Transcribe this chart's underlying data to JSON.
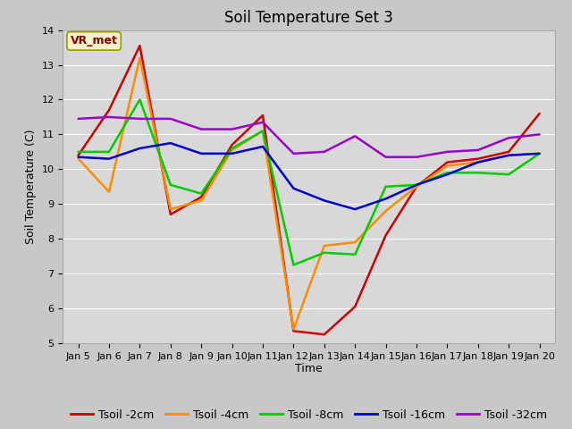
{
  "title": "Soil Temperature Set 3",
  "xlabel": "Time",
  "ylabel": "Soil Temperature (C)",
  "ylim": [
    5.0,
    14.0
  ],
  "yticks": [
    5.0,
    6.0,
    7.0,
    8.0,
    9.0,
    10.0,
    11.0,
    12.0,
    13.0,
    14.0
  ],
  "annotation_text": "VR_met",
  "x_labels": [
    "Jan 5",
    "Jan 6",
    "Jan 7",
    "Jan 8",
    "Jan 9",
    "Jan 10",
    "Jan 11",
    "Jan 12",
    "Jan 13",
    "Jan 14",
    "Jan 15",
    "Jan 16",
    "Jan 17",
    "Jan 18",
    "Jan 19",
    "Jan 20"
  ],
  "series": {
    "Tsoil -2cm": {
      "color": "#cc0000",
      "x": [
        0,
        1,
        2,
        3,
        4,
        5,
        6,
        7,
        8,
        9,
        10,
        11,
        12,
        13,
        14,
        15
      ],
      "y": [
        10.4,
        11.7,
        13.55,
        8.7,
        9.2,
        10.7,
        11.55,
        5.35,
        5.25,
        6.05,
        8.1,
        9.5,
        10.2,
        10.3,
        10.5,
        11.6
      ]
    },
    "Tsoil -4cm": {
      "color": "#ff8c00",
      "x": [
        0,
        1,
        2,
        3,
        4,
        5,
        6,
        7,
        8,
        9,
        10,
        11,
        12,
        13,
        14,
        15
      ],
      "y": [
        10.3,
        9.35,
        13.2,
        8.85,
        9.1,
        10.55,
        11.1,
        5.4,
        7.8,
        7.9,
        8.8,
        9.5,
        10.1,
        10.2,
        10.4,
        10.45
      ]
    },
    "Tsoil -8cm": {
      "color": "#00cc00",
      "x": [
        0,
        1,
        2,
        3,
        4,
        5,
        6,
        7,
        8,
        9,
        10,
        11,
        12,
        13,
        14,
        15
      ],
      "y": [
        10.5,
        10.5,
        12.0,
        9.55,
        9.3,
        10.6,
        11.1,
        7.25,
        7.6,
        7.55,
        9.5,
        9.55,
        9.9,
        9.9,
        9.85,
        10.45
      ]
    },
    "Tsoil -16cm": {
      "color": "#0000cc",
      "x": [
        0,
        1,
        2,
        3,
        4,
        5,
        6,
        7,
        8,
        9,
        10,
        11,
        12,
        13,
        14,
        15
      ],
      "y": [
        10.35,
        10.3,
        10.6,
        10.75,
        10.45,
        10.45,
        10.65,
        9.45,
        9.1,
        8.85,
        9.15,
        9.55,
        9.85,
        10.2,
        10.4,
        10.45
      ]
    },
    "Tsoil -32cm": {
      "color": "#9900cc",
      "x": [
        0,
        1,
        2,
        3,
        4,
        5,
        6,
        7,
        8,
        9,
        10,
        11,
        12,
        13,
        14,
        15
      ],
      "y": [
        11.45,
        11.5,
        11.45,
        11.45,
        11.15,
        11.15,
        11.35,
        10.45,
        10.5,
        10.95,
        10.35,
        10.35,
        10.5,
        10.55,
        10.9,
        11.0
      ]
    }
  },
  "legend_order": [
    "Tsoil -2cm",
    "Tsoil -4cm",
    "Tsoil -8cm",
    "Tsoil -16cm",
    "Tsoil -32cm"
  ],
  "fig_bg_color": "#c8c8c8",
  "plot_bg_color": "#d8d8d8",
  "annotation_box_color": "#f5f0c8",
  "annotation_border_color": "#999900",
  "annotation_text_color": "#8b0000",
  "grid_color": "#ffffff",
  "title_fontsize": 12,
  "label_fontsize": 9,
  "tick_fontsize": 8,
  "legend_fontsize": 9,
  "linewidth": 1.8
}
